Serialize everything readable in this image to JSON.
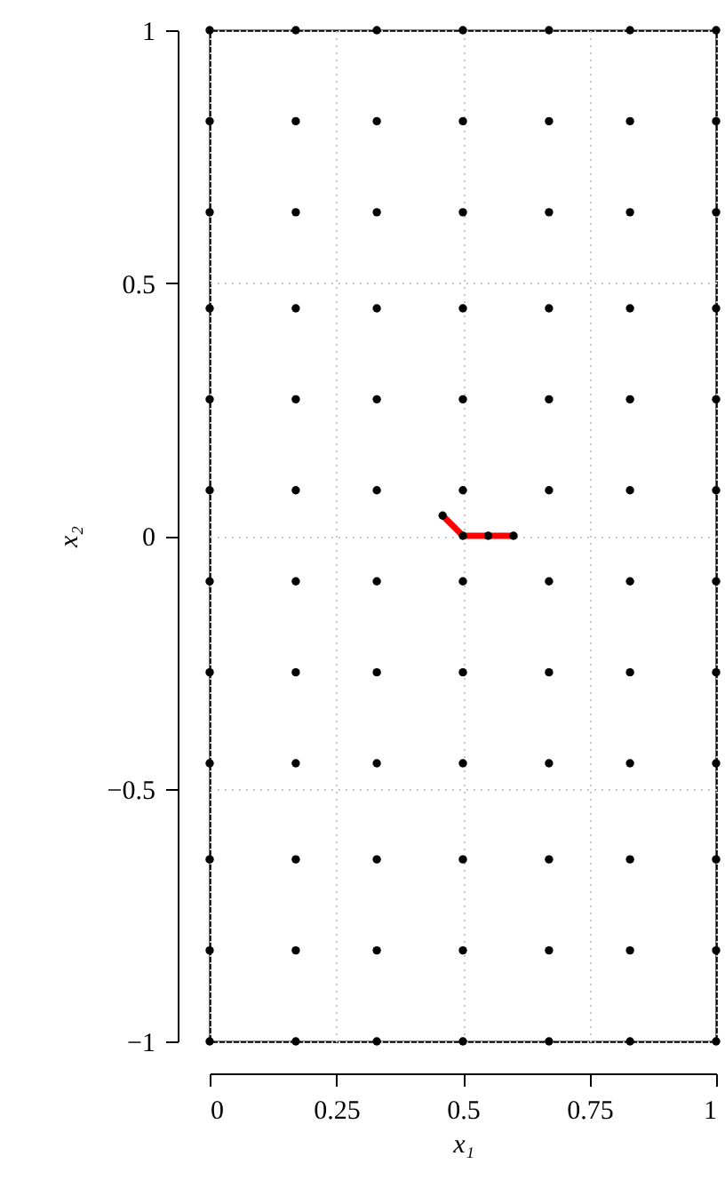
{
  "chart_data": {
    "type": "scatter",
    "xlabel": "x₁",
    "ylabel": "x₂",
    "xlim": [
      0,
      1
    ],
    "ylim": [
      -1,
      1
    ],
    "xticks": [
      0,
      0.25,
      0.5,
      0.75,
      1
    ],
    "yticks": [
      {
        "value": -1,
        "label": "−1"
      },
      {
        "value": -0.5,
        "label": "−0.5"
      },
      0,
      0.5,
      1
    ],
    "grid": true,
    "marker": "circle",
    "series": [
      {
        "color": "#000000",
        "x": [
          0,
          0.17,
          0.33,
          0.5,
          0.67,
          0.83,
          1,
          0,
          0.17,
          0.33,
          0.5,
          0.67,
          0.83,
          1,
          0,
          0.17,
          0.33,
          0.5,
          0.67,
          0.83,
          1,
          0,
          0.17,
          0.33,
          0.5,
          0.67,
          0.83,
          1,
          0,
          0.17,
          0.33,
          0.5,
          0.67,
          0.83,
          1,
          0,
          0.17,
          0.33,
          0.5,
          0.67,
          0.83,
          1,
          0,
          0.17,
          0.33,
          0.5,
          0.67,
          0.83,
          1,
          0,
          0.17,
          0.33,
          0.5,
          0.67,
          0.83,
          1,
          0,
          0.17,
          0.33,
          0.5,
          0.67,
          0.83,
          1,
          0,
          0.17,
          0.33,
          0.5,
          0.67,
          0.83,
          1,
          0,
          0.17,
          0.33,
          0.5,
          0.67,
          0.83,
          1,
          0,
          0.17,
          0.33,
          0.5,
          0.67,
          0.83,
          1
        ],
        "values": [
          1,
          1,
          1,
          1,
          1,
          1,
          1,
          0.82,
          0.82,
          0.82,
          0.82,
          0.82,
          0.82,
          0.82,
          0.64,
          0.64,
          0.64,
          0.64,
          0.64,
          0.64,
          0.64,
          0.45,
          0.45,
          0.45,
          0.45,
          0.45,
          0.45,
          0.45,
          0.27,
          0.27,
          0.27,
          0.27,
          0.27,
          0.27,
          0.27,
          0.09,
          0.09,
          0.09,
          0.09,
          0.09,
          0.09,
          0.09,
          -0.09,
          -0.09,
          -0.09,
          -0.09,
          -0.09,
          -0.09,
          -0.09,
          -0.27,
          -0.27,
          -0.27,
          -0.27,
          -0.27,
          -0.27,
          -0.27,
          -0.45,
          -0.45,
          -0.45,
          -0.45,
          -0.45,
          -0.45,
          -0.45,
          -0.64,
          -0.64,
          -0.64,
          -0.64,
          -0.64,
          -0.64,
          -0.64,
          -0.82,
          -0.82,
          -0.82,
          -0.82,
          -0.82,
          -0.82,
          -0.82,
          -1,
          -1,
          -1,
          -1,
          -1,
          -1,
          -1
        ]
      },
      {
        "type": "line",
        "marker": "none",
        "color": "#ff0000",
        "x": [
          0.46,
          0.5,
          0.55,
          0.6
        ],
        "values": [
          0.04,
          0,
          0,
          0
        ]
      },
      {
        "color": "#000000",
        "x": [
          0.46,
          0.5,
          0.55,
          0.6
        ],
        "values": [
          0.04,
          0,
          0,
          0
        ]
      }
    ]
  }
}
